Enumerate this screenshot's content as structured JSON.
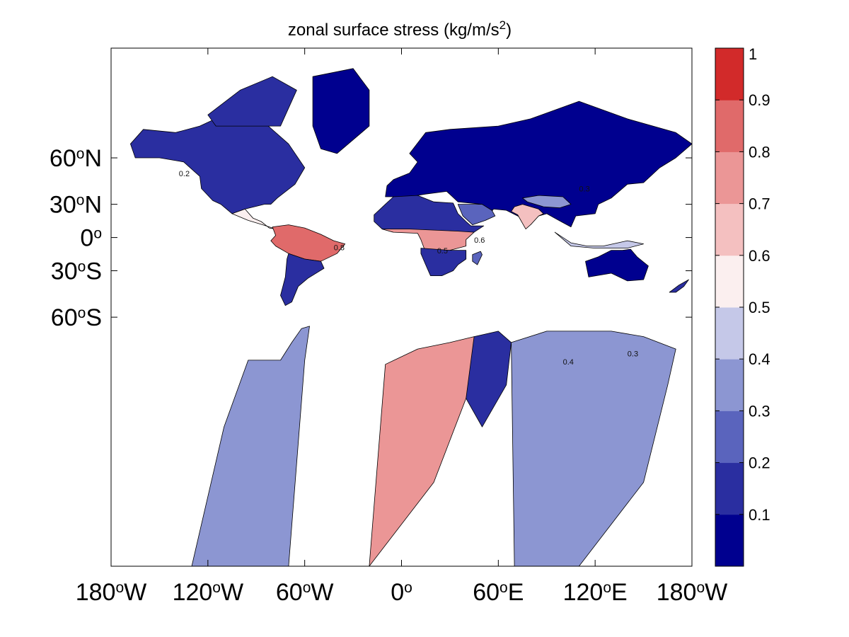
{
  "chart_data": {
    "type": "heatmap",
    "title": "zonal surface stress (kg/m/s",
    "title_sup": "2",
    "title_close": ")",
    "x_ticks": [
      {
        "lon": -180,
        "label": "180",
        "deg": "o",
        "hemi": "W"
      },
      {
        "lon": -120,
        "label": "120",
        "deg": "o",
        "hemi": "W"
      },
      {
        "lon": -60,
        "label": "60",
        "deg": "o",
        "hemi": "W"
      },
      {
        "lon": 0,
        "label": "0",
        "deg": "o",
        "hemi": ""
      },
      {
        "lon": 60,
        "label": "60",
        "deg": "o",
        "hemi": "E"
      },
      {
        "lon": 120,
        "label": "120",
        "deg": "o",
        "hemi": "E"
      },
      {
        "lon": 180,
        "label": "180",
        "deg": "o",
        "hemi": "W"
      }
    ],
    "y_ticks": [
      {
        "lat": 60,
        "label": "60",
        "deg": "o",
        "hemi": "N"
      },
      {
        "lat": 30,
        "label": "30",
        "deg": "o",
        "hemi": "N"
      },
      {
        "lat": 0,
        "label": "0",
        "deg": "o",
        "hemi": ""
      },
      {
        "lat": -30,
        "label": "30",
        "deg": "o",
        "hemi": "S"
      },
      {
        "lat": -60,
        "label": "60",
        "deg": "o",
        "hemi": "S"
      }
    ],
    "colorbar": {
      "levels": [
        0,
        0.1,
        0.2,
        0.3,
        0.4,
        0.5,
        0.6,
        0.7,
        0.8,
        0.9,
        1
      ],
      "tick_labels": [
        "0.1",
        "0.2",
        "0.3",
        "0.4",
        "0.5",
        "0.6",
        "0.7",
        "0.8",
        "0.9",
        "1"
      ],
      "colors": [
        "#00008f",
        "#2a2ea0",
        "#5a64bd",
        "#8c96d2",
        "#c5c8e8",
        "#fbefef",
        "#f4c0c0",
        "#eb9696",
        "#e06a6a",
        "#d22a2a"
      ]
    },
    "regions": [
      {
        "name": "North America",
        "value": 0.12,
        "poly": [
          [
            -168,
            66
          ],
          [
            -160,
            71
          ],
          [
            -140,
            70
          ],
          [
            -125,
            72
          ],
          [
            -110,
            75
          ],
          [
            -85,
            73
          ],
          [
            -70,
            66
          ],
          [
            -60,
            55
          ],
          [
            -66,
            45
          ],
          [
            -77,
            35
          ],
          [
            -81,
            30
          ],
          [
            -85,
            30
          ],
          [
            -97,
            26
          ],
          [
            -105,
            22
          ],
          [
            -112,
            30
          ],
          [
            -117,
            33
          ],
          [
            -124,
            42
          ],
          [
            -125,
            50
          ],
          [
            -135,
            58
          ],
          [
            -150,
            60
          ],
          [
            -165,
            60
          ]
        ]
      },
      {
        "name": "Canadian Archipelago",
        "value": 0.1,
        "poly": [
          [
            -120,
            75
          ],
          [
            -100,
            80
          ],
          [
            -80,
            82
          ],
          [
            -65,
            80
          ],
          [
            -75,
            72
          ],
          [
            -95,
            72
          ],
          [
            -115,
            72
          ]
        ]
      },
      {
        "name": "Greenland",
        "value": 0.08,
        "poly": [
          [
            -55,
            82
          ],
          [
            -30,
            83
          ],
          [
            -20,
            80
          ],
          [
            -20,
            72
          ],
          [
            -40,
            62
          ],
          [
            -50,
            64
          ],
          [
            -55,
            72
          ]
        ]
      },
      {
        "name": "Central America",
        "value": 0.55,
        "poly": [
          [
            -105,
            22
          ],
          [
            -97,
            26
          ],
          [
            -92,
            18
          ],
          [
            -87,
            15
          ],
          [
            -82,
            9
          ],
          [
            -78,
            8
          ],
          [
            -86,
            12
          ],
          [
            -95,
            16
          ]
        ]
      },
      {
        "name": "South America North",
        "value": 0.85,
        "poly": [
          [
            -80,
            10
          ],
          [
            -70,
            12
          ],
          [
            -60,
            9
          ],
          [
            -50,
            3
          ],
          [
            -42,
            -3
          ],
          [
            -35,
            -6
          ],
          [
            -40,
            -15
          ],
          [
            -50,
            -22
          ],
          [
            -60,
            -20
          ],
          [
            -70,
            -15
          ],
          [
            -78,
            -8
          ],
          [
            -81,
            -3
          ],
          [
            -78,
            2
          ]
        ]
      },
      {
        "name": "South America South",
        "value": 0.12,
        "poly": [
          [
            -70,
            -15
          ],
          [
            -60,
            -20
          ],
          [
            -50,
            -22
          ],
          [
            -48,
            -28
          ],
          [
            -58,
            -36
          ],
          [
            -64,
            -42
          ],
          [
            -68,
            -52
          ],
          [
            -72,
            -54
          ],
          [
            -75,
            -48
          ],
          [
            -72,
            -35
          ],
          [
            -71,
            -20
          ]
        ]
      },
      {
        "name": "Europe Asia",
        "value": 0.08,
        "poly": [
          [
            -10,
            36
          ],
          [
            -9,
            44
          ],
          [
            -5,
            48
          ],
          [
            5,
            52
          ],
          [
            10,
            58
          ],
          [
            5,
            62
          ],
          [
            15,
            70
          ],
          [
            30,
            71
          ],
          [
            60,
            72
          ],
          [
            80,
            74
          ],
          [
            110,
            78
          ],
          [
            140,
            74
          ],
          [
            170,
            70
          ],
          [
            180,
            66
          ],
          [
            170,
            60
          ],
          [
            160,
            55
          ],
          [
            150,
            46
          ],
          [
            140,
            45
          ],
          [
            130,
            35
          ],
          [
            122,
            30
          ],
          [
            120,
            22
          ],
          [
            108,
            20
          ],
          [
            105,
            10
          ],
          [
            100,
            14
          ],
          [
            95,
            18
          ],
          [
            90,
            22
          ],
          [
            85,
            20
          ],
          [
            80,
            12
          ],
          [
            72,
            20
          ],
          [
            65,
            25
          ],
          [
            57,
            26
          ],
          [
            55,
            22
          ],
          [
            50,
            30
          ],
          [
            35,
            32
          ],
          [
            28,
            40
          ],
          [
            15,
            38
          ],
          [
            5,
            36
          ]
        ]
      },
      {
        "name": "South Asia",
        "value": 0.62,
        "poly": [
          [
            68,
            24
          ],
          [
            72,
            21
          ],
          [
            77,
            8
          ],
          [
            80,
            12
          ],
          [
            85,
            20
          ],
          [
            88,
            22
          ],
          [
            85,
            26
          ],
          [
            75,
            30
          ],
          [
            70,
            28
          ]
        ]
      },
      {
        "name": "Tibet",
        "value": 0.35,
        "poly": [
          [
            75,
            35
          ],
          [
            85,
            37
          ],
          [
            100,
            36
          ],
          [
            105,
            30
          ],
          [
            98,
            27
          ],
          [
            88,
            28
          ],
          [
            78,
            32
          ]
        ]
      },
      {
        "name": "Arabia",
        "value": 0.2,
        "poly": [
          [
            35,
            30
          ],
          [
            50,
            30
          ],
          [
            56,
            25
          ],
          [
            58,
            20
          ],
          [
            52,
            16
          ],
          [
            44,
            12
          ],
          [
            38,
            20
          ]
        ]
      },
      {
        "name": "Africa North",
        "value": 0.1,
        "poly": [
          [
            -17,
            15
          ],
          [
            -17,
            21
          ],
          [
            -10,
            30
          ],
          [
            -5,
            36
          ],
          [
            10,
            37
          ],
          [
            20,
            32
          ],
          [
            32,
            31
          ],
          [
            35,
            22
          ],
          [
            40,
            15
          ],
          [
            43,
            11
          ],
          [
            51,
            11
          ],
          [
            45,
            5
          ],
          [
            35,
            5
          ],
          [
            20,
            5
          ],
          [
            10,
            5
          ],
          [
            -5,
            5
          ],
          [
            -12,
            8
          ]
        ]
      },
      {
        "name": "Africa Central",
        "value": 0.7,
        "poly": [
          [
            -12,
            8
          ],
          [
            -5,
            5
          ],
          [
            10,
            4
          ],
          [
            12,
            -2
          ],
          [
            14,
            -10
          ],
          [
            18,
            -15
          ],
          [
            30,
            -12
          ],
          [
            40,
            -8
          ],
          [
            40,
            -2
          ],
          [
            45,
            5
          ],
          [
            35,
            6
          ],
          [
            20,
            7
          ],
          [
            5,
            8
          ]
        ]
      },
      {
        "name": "Africa South",
        "value": 0.15,
        "poly": [
          [
            12,
            -10
          ],
          [
            30,
            -12
          ],
          [
            40,
            -12
          ],
          [
            40,
            -20
          ],
          [
            35,
            -25
          ],
          [
            32,
            -30
          ],
          [
            25,
            -34
          ],
          [
            18,
            -34
          ],
          [
            15,
            -25
          ],
          [
            12,
            -15
          ]
        ]
      },
      {
        "name": "Madagascar",
        "value": 0.2,
        "poly": [
          [
            44,
            -16
          ],
          [
            49,
            -13
          ],
          [
            50,
            -16
          ],
          [
            47,
            -25
          ],
          [
            44,
            -22
          ]
        ]
      },
      {
        "name": "Southeast Asia Islands",
        "value": 0.4,
        "poly": [
          [
            95,
            5
          ],
          [
            105,
            -5
          ],
          [
            115,
            -8
          ],
          [
            125,
            -8
          ],
          [
            140,
            -3
          ],
          [
            150,
            -6
          ],
          [
            140,
            -10
          ],
          [
            120,
            -10
          ],
          [
            105,
            -8
          ]
        ]
      },
      {
        "name": "Australia",
        "value": 0.08,
        "poly": [
          [
            114,
            -22
          ],
          [
            122,
            -18
          ],
          [
            130,
            -12
          ],
          [
            137,
            -12
          ],
          [
            142,
            -11
          ],
          [
            146,
            -18
          ],
          [
            153,
            -26
          ],
          [
            150,
            -37
          ],
          [
            140,
            -38
          ],
          [
            130,
            -32
          ],
          [
            116,
            -35
          ]
        ]
      },
      {
        "name": "New Zealand",
        "value": 0.15,
        "poly": [
          [
            166,
            -46
          ],
          [
            172,
            -41
          ],
          [
            178,
            -37
          ],
          [
            175,
            -42
          ],
          [
            170,
            -46
          ]
        ]
      },
      {
        "name": "Antarctic Peninsula",
        "value": 0.35,
        "poly": [
          [
            -70,
            -90
          ],
          [
            -60,
            -75
          ],
          [
            -57,
            -64
          ],
          [
            -62,
            -65
          ],
          [
            -68,
            -70
          ],
          [
            -75,
            -75
          ],
          [
            -95,
            -75
          ],
          [
            -110,
            -85
          ],
          [
            -130,
            -90
          ]
        ]
      },
      {
        "name": "East Antarctica West",
        "value": 0.75,
        "poly": [
          [
            -20,
            -90
          ],
          [
            -10,
            -76
          ],
          [
            10,
            -72
          ],
          [
            30,
            -70
          ],
          [
            45,
            -68
          ],
          [
            50,
            -72
          ],
          [
            40,
            -82
          ],
          [
            20,
            -88
          ]
        ]
      },
      {
        "name": "East Antarctica Mid",
        "value": 0.1,
        "poly": [
          [
            45,
            -68
          ],
          [
            60,
            -66
          ],
          [
            68,
            -70
          ],
          [
            65,
            -80
          ],
          [
            50,
            -85
          ],
          [
            40,
            -82
          ]
        ]
      },
      {
        "name": "East Antarctica East",
        "value": 0.3,
        "poly": [
          [
            68,
            -70
          ],
          [
            90,
            -66
          ],
          [
            110,
            -66
          ],
          [
            130,
            -66
          ],
          [
            150,
            -68
          ],
          [
            170,
            -72
          ],
          [
            165,
            -80
          ],
          [
            150,
            -88
          ],
          [
            110,
            -90
          ],
          [
            70,
            -90
          ]
        ]
      }
    ],
    "contour_labels": [
      {
        "lon": -138,
        "lat": 50,
        "text": "0.2"
      },
      {
        "lon": 22,
        "lat": -15,
        "text": "0.5"
      },
      {
        "lon": -42,
        "lat": -12,
        "text": "0.8"
      },
      {
        "lon": 110,
        "lat": 40,
        "text": "0.3"
      },
      {
        "lon": 45,
        "lat": -5,
        "text": "0.6"
      },
      {
        "lon": 100,
        "lat": -76,
        "text": "0.4"
      },
      {
        "lon": 140,
        "lat": -74,
        "text": "0.3"
      }
    ]
  }
}
